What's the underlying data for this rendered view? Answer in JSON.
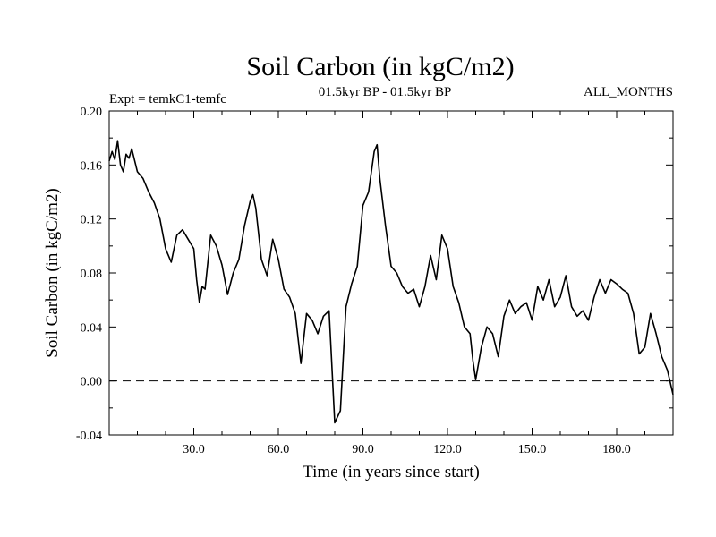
{
  "chart_data": {
    "type": "line",
    "title": "Soil Carbon (in kgC/m2)",
    "subtitle_left": "Expt = temkC1-temfc",
    "subtitle_center": "01.5kyr BP - 01.5kyr BP",
    "subtitle_right": "ALL_MONTHS",
    "xlabel": "Time (in years since start)",
    "ylabel": "Soil Carbon (in kgC/m2)",
    "xlim": [
      0,
      200
    ],
    "ylim": [
      -0.04,
      0.2
    ],
    "xticks": [
      30,
      60,
      90,
      120,
      150,
      180
    ],
    "xtick_labels": [
      "30.0",
      "60.0",
      "90.0",
      "120.0",
      "150.0",
      "180.0"
    ],
    "yticks": [
      -0.04,
      0.0,
      0.04,
      0.08,
      0.12,
      0.16,
      0.2
    ],
    "ytick_labels": [
      "-0.04",
      "0.00",
      "0.04",
      "0.08",
      "0.12",
      "0.16",
      "0.20"
    ],
    "reference_line": {
      "y": 0.0,
      "style": "dashed"
    },
    "series": [
      {
        "name": "Soil Carbon",
        "x": [
          0,
          1,
          2,
          3,
          4,
          5,
          6,
          7,
          8,
          10,
          12,
          14,
          16,
          18,
          20,
          22,
          24,
          26,
          28,
          30,
          31,
          32,
          33,
          34,
          36,
          38,
          40,
          42,
          44,
          46,
          48,
          50,
          51,
          52,
          54,
          56,
          58,
          60,
          62,
          64,
          66,
          68,
          70,
          72,
          74,
          76,
          78,
          80,
          82,
          84,
          86,
          88,
          90,
          92,
          94,
          95,
          96,
          98,
          100,
          102,
          104,
          106,
          108,
          110,
          112,
          114,
          116,
          118,
          120,
          122,
          124,
          126,
          128,
          129,
          130,
          132,
          134,
          136,
          138,
          140,
          142,
          144,
          146,
          148,
          150,
          152,
          154,
          156,
          158,
          160,
          162,
          164,
          166,
          168,
          170,
          172,
          174,
          176,
          178,
          180,
          182,
          184,
          186,
          188,
          190,
          192,
          194,
          196,
          198,
          200
        ],
        "y": [
          0.163,
          0.17,
          0.164,
          0.178,
          0.16,
          0.155,
          0.168,
          0.165,
          0.172,
          0.155,
          0.15,
          0.14,
          0.132,
          0.12,
          0.098,
          0.088,
          0.108,
          0.112,
          0.105,
          0.098,
          0.075,
          0.058,
          0.07,
          0.068,
          0.108,
          0.1,
          0.086,
          0.064,
          0.08,
          0.09,
          0.115,
          0.133,
          0.138,
          0.128,
          0.09,
          0.078,
          0.105,
          0.09,
          0.068,
          0.062,
          0.05,
          0.013,
          0.05,
          0.045,
          0.035,
          0.048,
          0.052,
          -0.031,
          -0.022,
          0.055,
          0.072,
          0.085,
          0.13,
          0.14,
          0.17,
          0.175,
          0.15,
          0.115,
          0.085,
          0.08,
          0.07,
          0.065,
          0.068,
          0.055,
          0.07,
          0.093,
          0.075,
          0.108,
          0.098,
          0.07,
          0.058,
          0.04,
          0.035,
          0.015,
          0.001,
          0.025,
          0.04,
          0.035,
          0.018,
          0.048,
          0.06,
          0.05,
          0.055,
          0.058,
          0.045,
          0.07,
          0.06,
          0.075,
          0.055,
          0.062,
          0.078,
          0.055,
          0.048,
          0.052,
          0.045,
          0.062,
          0.075,
          0.065,
          0.075,
          0.072,
          0.068,
          0.065,
          0.05,
          0.02,
          0.025,
          0.05,
          0.035,
          0.018,
          0.008,
          -0.01
        ]
      }
    ]
  }
}
